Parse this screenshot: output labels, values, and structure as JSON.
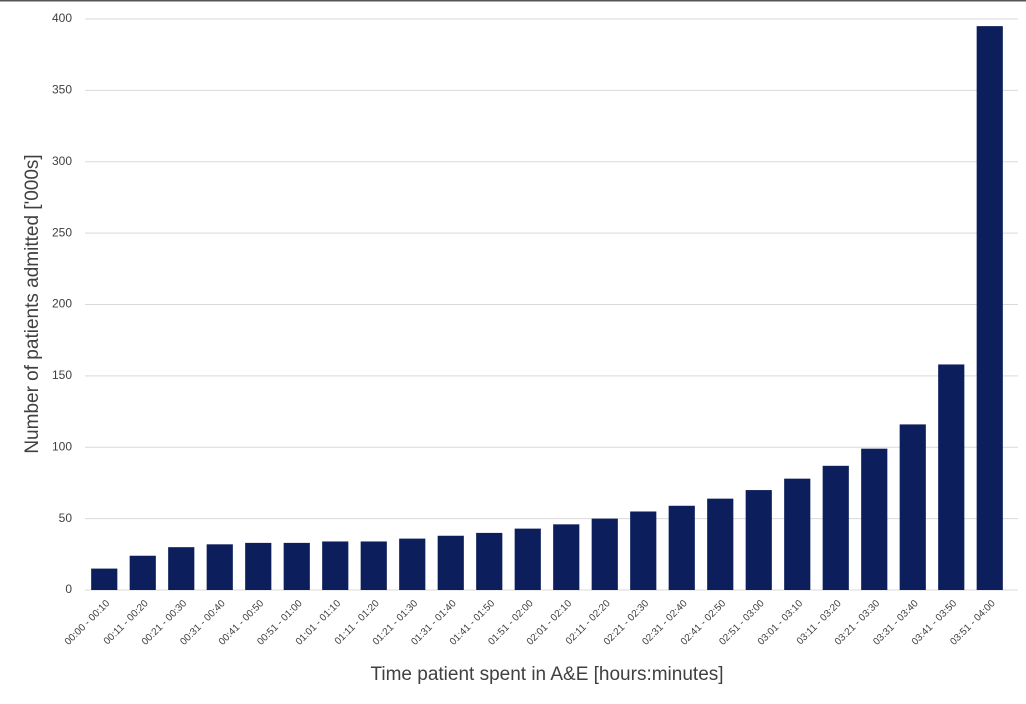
{
  "chart_data": {
    "type": "bar",
    "x_label": "Time patient spent in A&E [hours:minutes]",
    "y_label": "Number of patients admitted ['000s]",
    "categories": [
      "00:00 - 00:10",
      "00:11 - 00:20",
      "00:21 - 00:30",
      "00:31 - 00:40",
      "00:41 - 00:50",
      "00:51 - 01:00",
      "01:01 - 01:10",
      "01:11 - 01:20",
      "01:21 - 01:30",
      "01:31 - 01:40",
      "01:41 - 01:50",
      "01:51 - 02:00",
      "02:01 - 02:10",
      "02:11 - 02:20",
      "02:21 - 02:30",
      "02:31 - 02:40",
      "02:41 - 02:50",
      "02:51 - 03:00",
      "03:01 - 03:10",
      "03:11 - 03:20",
      "03:21 - 03:30",
      "03:31 - 03:40",
      "03:41 - 03:50",
      "03:51 - 04:00"
    ],
    "values": [
      15,
      24,
      30,
      32,
      33,
      33,
      34,
      34,
      36,
      38,
      40,
      43,
      46,
      50,
      55,
      59,
      64,
      70,
      78,
      87,
      99,
      116,
      158,
      395
    ],
    "color": "#0c1f5c",
    "ylim": [
      0,
      400
    ],
    "yticks": [
      0,
      50,
      100,
      150,
      200,
      250,
      300,
      350,
      400
    ],
    "grid": true
  }
}
